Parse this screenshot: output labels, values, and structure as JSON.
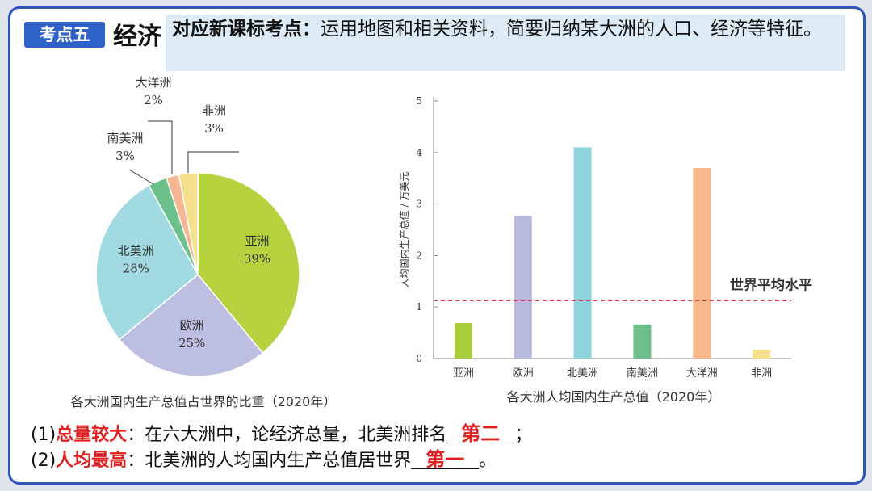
{
  "header": {
    "badge": "考点五",
    "topic": "经济",
    "standard_label": "对应新课标考点：",
    "standard_text": "运用地图和相关资料，简要归纳某大洲的人口、经济等特征。"
  },
  "chart_data": [
    {
      "type": "pie",
      "title": "各大洲国内生产总值占世界的比重（2020年）",
      "categories": [
        "亚洲",
        "欧洲",
        "北美洲",
        "南美洲",
        "大洋洲",
        "非洲"
      ],
      "values": [
        39,
        25,
        28,
        3,
        2,
        3
      ],
      "value_labels": [
        "39%",
        "25%",
        "28%",
        "3%",
        "2%",
        "3%"
      ],
      "colors": [
        "#b5d33e",
        "#bcbee2",
        "#a2dae1",
        "#6cc08a",
        "#f6b691",
        "#f4e08c"
      ]
    },
    {
      "type": "bar",
      "title": "各大洲人均国内生产总值（2020年）",
      "y_label": "人均国内生产总值 / 万美元",
      "categories": [
        "亚洲",
        "欧洲",
        "北美洲",
        "南美洲",
        "大洋洲",
        "非洲"
      ],
      "values": [
        0.69,
        2.77,
        4.1,
        0.66,
        3.7,
        0.17
      ],
      "colors": [
        "#a8cc3c",
        "#b8bade",
        "#8dd4db",
        "#6cbe8a",
        "#f8b88e",
        "#f5e08c"
      ],
      "ylim": [
        0,
        5
      ],
      "yticks": [
        0,
        1,
        2,
        3,
        4,
        5
      ],
      "reference_line": {
        "value": 1.12,
        "label": "世界平均水平",
        "color": "#e23b3b"
      }
    }
  ],
  "questions": [
    {
      "number": "(1)",
      "keyword": "总量较大",
      "text": "：在六大洲中，论经济总量，北美洲排名",
      "answer": "第二",
      "end": "；"
    },
    {
      "number": "(2)",
      "keyword": "人均最高",
      "text": "：北美洲的人均国内生产总值居世界",
      "answer": "第一",
      "end": "。"
    }
  ]
}
